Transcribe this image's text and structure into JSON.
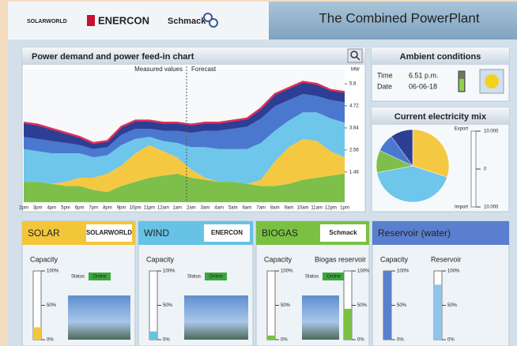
{
  "header": {
    "logos": [
      "SOLARWORLD",
      "ENERCON",
      "Schmack"
    ],
    "title": "The Combined PowerPlant"
  },
  "demand_panel": {
    "title": "Power demand and power feed-in chart",
    "measured_label": "Measured values",
    "forecast_label": "Forecast"
  },
  "ambient": {
    "title": "Ambient conditions",
    "time_label": "Time",
    "time": "6.51 p.m.",
    "date_label": "Date",
    "date": "06-06-18"
  },
  "mix_gauge": {
    "export_label": "Export",
    "import_label": "Import",
    "lim": [
      -10000,
      10000
    ],
    "ticks": [
      {
        "value": 10000,
        "label": "10.000"
      },
      0,
      {
        "value": -10000,
        "label": "10.000"
      }
    ]
  },
  "chart_data": [
    {
      "type": "area",
      "stacked": true,
      "y_unit": "MW",
      "categories": [
        "2pm",
        "3pm",
        "4pm",
        "5pm",
        "6pm",
        "7pm",
        "8pm",
        "9pm",
        "10pm",
        "11pm",
        "12am",
        "1am",
        "2am",
        "3am",
        "4am",
        "5am",
        "6am",
        "7am",
        "8am",
        "9am",
        "10am",
        "11am",
        "12pm",
        "1pm"
      ],
      "ylim": [
        0,
        6.5
      ],
      "yticks": [
        1.48,
        2.56,
        3.64,
        4.72,
        5.8
      ],
      "series": [
        {
          "color": "#7dbf4a",
          "values": [
            1.0,
            1.0,
            0.9,
            0.8,
            0.8,
            0.6,
            0.5,
            0.8,
            1.0,
            1.2,
            1.3,
            1.4,
            1.2,
            1.1,
            1.0,
            1.0,
            0.9,
            0.8,
            0.8,
            0.9,
            1.1,
            1.2,
            1.3,
            1.4
          ]
        },
        {
          "color": "#f5c842",
          "values": [
            0,
            0,
            0,
            0.2,
            0.4,
            0.6,
            0.9,
            1.0,
            1.4,
            1.6,
            1.2,
            0.8,
            0.4,
            0.1,
            0,
            0,
            0,
            0.3,
            1.2,
            1.8,
            2.0,
            1.8,
            1.2,
            0.8
          ]
        },
        {
          "color": "#6ec6ea",
          "values": [
            1.6,
            1.5,
            1.5,
            1.4,
            1.2,
            1.0,
            0.9,
            1.0,
            0.7,
            0.4,
            0.5,
            0.7,
            1.1,
            1.5,
            1.6,
            1.6,
            1.7,
            1.8,
            1.5,
            1.3,
            1.3,
            1.4,
            1.6,
            1.7
          ]
        },
        {
          "color": "#4a78cf",
          "values": [
            0.6,
            0.6,
            0.6,
            0.5,
            0.4,
            0.4,
            0.4,
            0.5,
            0.5,
            0.4,
            0.5,
            0.6,
            0.7,
            0.8,
            0.9,
            1.0,
            1.1,
            1.2,
            1.2,
            1.0,
            0.9,
            0.8,
            0.9,
            1.0
          ]
        },
        {
          "color": "#2d3f94",
          "values": [
            0.7,
            0.7,
            0.6,
            0.5,
            0.4,
            0.3,
            0.3,
            0.4,
            0.4,
            0.4,
            0.4,
            0.4,
            0.4,
            0.4,
            0.4,
            0.4,
            0.4,
            0.5,
            0.6,
            0.6,
            0.6,
            0.6,
            0.5,
            0.5
          ]
        }
      ],
      "demand": {
        "color": "#e0305a",
        "values": [
          3.9,
          3.8,
          3.6,
          3.4,
          3.2,
          2.9,
          3.0,
          3.7,
          4.0,
          4.0,
          3.9,
          3.9,
          3.8,
          3.9,
          3.9,
          4.0,
          4.1,
          4.6,
          5.3,
          5.6,
          5.9,
          5.8,
          5.5,
          5.4
        ]
      }
    },
    {
      "type": "pie",
      "title": "Current electricity mix",
      "values": [
        30,
        42,
        10,
        8,
        10
      ],
      "colors": [
        "#f5c842",
        "#6ec6ea",
        "#7dbf4a",
        "#4a78cf",
        "#2d3f94"
      ]
    }
  ],
  "gauge_ticks": [
    {
      "value": 100,
      "label": "100%"
    },
    {
      "value": 50,
      "label": "50%"
    },
    {
      "value": 0,
      "label": "0%"
    }
  ],
  "panels": [
    {
      "title": "SOLAR",
      "logo": "SOLARWORLD",
      "color": "#f3c63a",
      "capacity_label": "Capacity",
      "status_label": "Status",
      "status": "Online",
      "capacity": 18
    },
    {
      "title": "WIND",
      "logo": "ENERCON",
      "color": "#66c3e6",
      "capacity_label": "Capacity",
      "status_label": "Status",
      "status": "Online",
      "capacity": 12
    },
    {
      "title": "BIOGAS",
      "logo": "Schmack",
      "color": "#7ac143",
      "capacity_label": "Capacity",
      "status_label": "Status",
      "status": "Online",
      "capacity": 6,
      "reservoir_label": "Biogas reservoir",
      "reservoir": 45
    },
    {
      "title": "Reservoir (water)",
      "color": "#5b7fcf",
      "capacity_label": "Capacity",
      "reservoir_label": "Reservoir",
      "capacity": 100,
      "reservoir": 80
    }
  ]
}
